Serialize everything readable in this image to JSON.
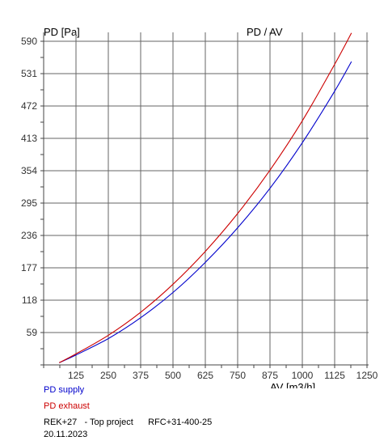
{
  "chart_data": {
    "type": "line",
    "title": "PD / AV",
    "ylabel": "PD [Pa]",
    "xlabel": "AV [m3/h]",
    "x_ticks": [
      125,
      250,
      375,
      500,
      625,
      750,
      875,
      1000,
      1125,
      1250
    ],
    "y_ticks": [
      59,
      118,
      177,
      236,
      295,
      354,
      413,
      472,
      531,
      590
    ],
    "xlim": [
      0,
      1250
    ],
    "ylim": [
      0,
      600
    ],
    "grid": true,
    "series": [
      {
        "name": "PD supply",
        "color": "#0000cc",
        "x": [
          60,
          125,
          250,
          375,
          500,
          625,
          750,
          875,
          1000,
          1125,
          1190
        ],
        "y": [
          4,
          18,
          48,
          86,
          132,
          187,
          250,
          322,
          405,
          499,
          553
        ]
      },
      {
        "name": "PD exhaust",
        "color": "#cc0000",
        "x": [
          60,
          125,
          250,
          375,
          500,
          625,
          750,
          875,
          1000,
          1125,
          1190
        ],
        "y": [
          4,
          20,
          54,
          96,
          147,
          207,
          276,
          355,
          445,
          548,
          605
        ]
      }
    ]
  },
  "footer": {
    "project_line": "REK+27   - Top project      RFC+31-400-25",
    "date": "20.11.2023"
  }
}
